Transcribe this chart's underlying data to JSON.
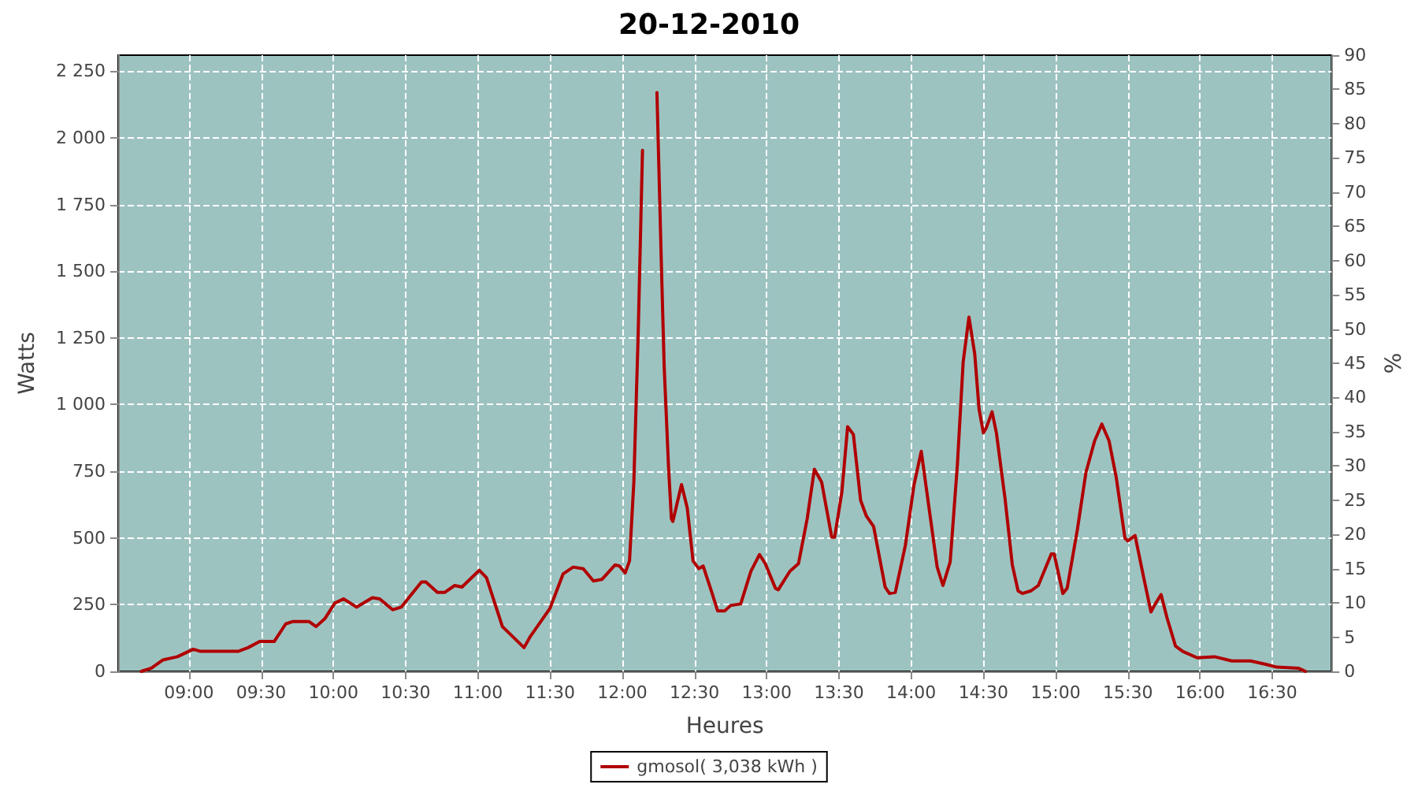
{
  "chart_data": {
    "type": "line",
    "title": "20-12-2010",
    "xlabel": "Heures",
    "ylabel": "Watts",
    "y2label": "%",
    "xlim": [
      8.51,
      16.91
    ],
    "xticks": [
      {
        "value": 9,
        "label": "09:00"
      },
      {
        "value": 9.5,
        "label": "09:30"
      },
      {
        "value": 10,
        "label": "10:00"
      },
      {
        "value": 10.5,
        "label": "10:30"
      },
      {
        "value": 11,
        "label": "11:00"
      },
      {
        "value": 11.5,
        "label": "11:30"
      },
      {
        "value": 12,
        "label": "12:00"
      },
      {
        "value": 12.5,
        "label": "12:30"
      },
      {
        "value": 13,
        "label": "13:00"
      },
      {
        "value": 13.5,
        "label": "13:30"
      },
      {
        "value": 14,
        "label": "14:00"
      },
      {
        "value": 14.5,
        "label": "14:30"
      },
      {
        "value": 15,
        "label": "15:00"
      },
      {
        "value": 15.5,
        "label": "15:30"
      },
      {
        "value": 16,
        "label": "16:00"
      },
      {
        "value": 16.5,
        "label": "16:30"
      }
    ],
    "ylim": [
      0,
      2310
    ],
    "yticks": [
      0,
      250,
      500,
      750,
      {
        "value": 1000,
        "label": "1 000"
      },
      {
        "value": 1250,
        "label": "1 250"
      },
      {
        "value": 1500,
        "label": "1 500"
      },
      {
        "value": 1750,
        "label": "1 750"
      },
      {
        "value": 2000,
        "label": "2 000"
      },
      {
        "value": 2250,
        "label": "2 250"
      }
    ],
    "y2lim": [
      0,
      90
    ],
    "y2ticks": [
      0,
      5,
      10,
      15,
      20,
      25,
      30,
      35,
      40,
      45,
      50,
      55,
      60,
      65,
      70,
      75,
      80,
      85,
      90
    ],
    "grid": true,
    "legend": "bottom",
    "marker": "none",
    "line_style": "solid",
    "series": [
      {
        "name": "gmosol( 3,038 kWh )",
        "color": "#b00000",
        "x": [
          8.67,
          8.74,
          8.82,
          8.92,
          9.03,
          9.08,
          9.34,
          9.41,
          9.49,
          9.59,
          9.67,
          9.72,
          9.83,
          9.88,
          9.94,
          10.01,
          10.07,
          10.16,
          10.27,
          10.32,
          10.41,
          10.47,
          10.61,
          10.64,
          10.72,
          10.77,
          10.84,
          10.89,
          11.01,
          11.06,
          11.17,
          11.32,
          11.36,
          11.5,
          11.59,
          11.66,
          11.73,
          11.8,
          11.86,
          11.95,
          11.98,
          12.02,
          12.05,
          12.08,
          12.11,
          12.14,
          12.17,
          12.22,
          12.24,
          12.27,
          12.29,
          12.32,
          12.34,
          12.35,
          12.41,
          12.45,
          12.49,
          12.53,
          12.56,
          12.62,
          12.66,
          12.71,
          12.75,
          12.82,
          12.89,
          12.95,
          12.99,
          13.06,
          13.08,
          13.16,
          13.22,
          13.28,
          13.33,
          13.38,
          13.45,
          13.47,
          13.52,
          13.56,
          13.6,
          13.65,
          13.69,
          13.74,
          13.82,
          13.85,
          13.89,
          13.96,
          14.02,
          14.07,
          14.12,
          14.18,
          14.22,
          14.27,
          14.32,
          14.36,
          14.4,
          14.44,
          14.47,
          14.5,
          14.52,
          14.56,
          14.59,
          14.65,
          14.7,
          14.74,
          14.77,
          14.83,
          14.88,
          14.97,
          14.99,
          15.05,
          15.08,
          15.15,
          15.21,
          15.27,
          15.32,
          15.37,
          15.42,
          15.48,
          15.5,
          15.55,
          15.61,
          15.66,
          15.69,
          15.73,
          15.77,
          15.83,
          15.88,
          15.98,
          16.1,
          16.22,
          16.35,
          16.46,
          16.53,
          16.68,
          16.73
        ],
        "values": [
          0,
          12,
          43,
          55,
          83,
          75,
          75,
          89,
          112,
          112,
          178,
          187,
          187,
          168,
          197,
          256,
          272,
          241,
          276,
          272,
          231,
          241,
          335,
          335,
          296,
          296,
          322,
          316,
          379,
          351,
          168,
          89,
          128,
          237,
          365,
          391,
          385,
          339,
          345,
          399,
          395,
          369,
          414,
          710,
          1263,
          1953,
          null,
          null,
          2170,
          1539,
          1144,
          769,
          572,
          562,
          700,
          612,
          414,
          385,
          395,
          296,
          227,
          227,
          247,
          253,
          375,
          438,
          404,
          312,
          306,
          375,
          404,
          572,
          758,
          710,
          503,
          503,
          671,
          917,
          888,
          641,
          582,
          543,
          316,
          292,
          296,
          473,
          700,
          825,
          627,
          391,
          322,
          410,
          775,
          1160,
          1328,
          1190,
          983,
          894,
          913,
          973,
          894,
          647,
          400,
          302,
          292,
          302,
          322,
          440,
          440,
          292,
          312,
          529,
          746,
          864,
          927,
          864,
          726,
          499,
          489,
          509,
          351,
          223,
          253,
          288,
          203,
          95,
          75,
          51,
          55,
          39,
          39,
          26,
          16,
          12,
          0
        ]
      }
    ]
  }
}
